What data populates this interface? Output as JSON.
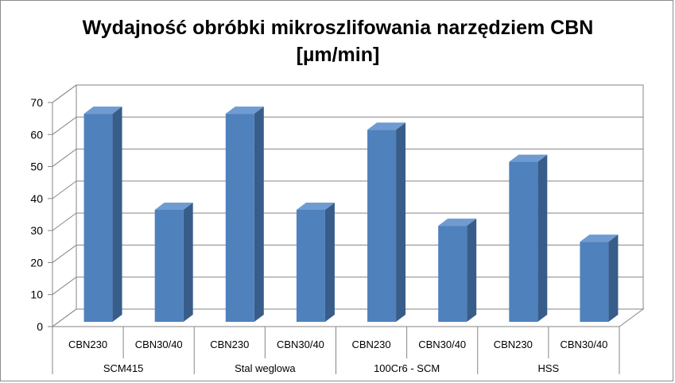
{
  "chart_data": {
    "type": "bar",
    "title_line1": "Wydajność obróbki mikroszlifowania narzędziem CBN",
    "title_line2": "[µm/min]",
    "categories": [
      {
        "group": "SCM415",
        "sub": "CBN230",
        "value": 65
      },
      {
        "group": "SCM415",
        "sub": "CBN30/40",
        "value": 35
      },
      {
        "group": "Stal weglowa",
        "sub": "CBN230",
        "value": 65
      },
      {
        "group": "Stal weglowa",
        "sub": "CBN30/40",
        "value": 35
      },
      {
        "group": "100Cr6 - SCM",
        "sub": "CBN230",
        "value": 60
      },
      {
        "group": "100Cr6 - SCM",
        "sub": "CBN30/40",
        "value": 30
      },
      {
        "group": "HSS",
        "sub": "CBN230",
        "value": 50
      },
      {
        "group": "HSS",
        "sub": "CBN30/40",
        "value": 25
      }
    ],
    "groups": [
      "SCM415",
      "Stal weglowa",
      "100Cr6 - SCM",
      "HSS"
    ],
    "yticks": [
      "0",
      "10",
      "20",
      "30",
      "40",
      "50",
      "60",
      "70"
    ],
    "ylim": [
      0,
      70
    ],
    "grid": true,
    "legend": "none",
    "colors": {
      "front": "#4f81bd",
      "side": "#385d8a",
      "top": "#6f9bd1",
      "grid": "#868686"
    }
  }
}
